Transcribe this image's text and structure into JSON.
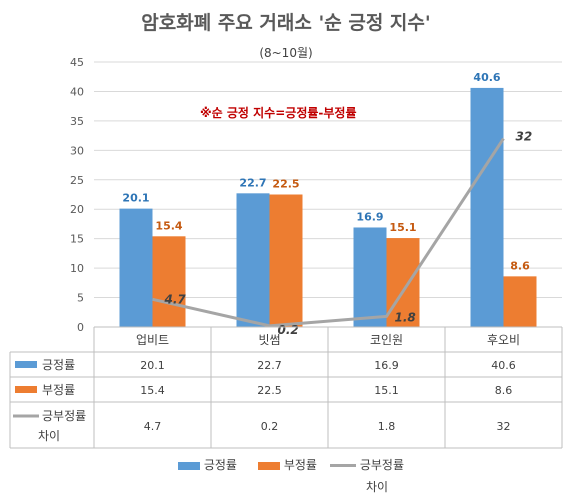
{
  "chart_data": {
    "type": "bar",
    "title": "암호화폐 주요 거래소 '순 긍정 지수'",
    "subtitle": "(8~10월)",
    "annotation": "※순 긍정 지수=긍정률-부정률",
    "categories": [
      "업비트",
      "빗썸",
      "코인원",
      "후오비"
    ],
    "series": [
      {
        "name": "긍정률",
        "kind": "bar",
        "color": "#5b9bd5",
        "label_color": "#2e75b6",
        "values": [
          20.1,
          22.7,
          16.9,
          40.6
        ]
      },
      {
        "name": "부정률",
        "kind": "bar",
        "color": "#ed7d31",
        "label_color": "#c55a11",
        "values": [
          15.4,
          22.5,
          15.1,
          8.6
        ]
      },
      {
        "name": "긍부정률 차이",
        "name_lines": [
          "긍부정률",
          "차이"
        ],
        "kind": "line",
        "color": "#a5a5a5",
        "values": [
          4.7,
          0.2,
          1.8,
          32
        ]
      }
    ],
    "ylim": [
      0,
      45
    ],
    "yticks": [
      0,
      5,
      10,
      15,
      20,
      25,
      30,
      35,
      40,
      45
    ],
    "grid": true,
    "legend": "bottom",
    "data_table": true,
    "table_values": [
      [
        "20.1",
        "22.7",
        "16.9",
        "40.6"
      ],
      [
        "15.4",
        "22.5",
        "15.1",
        "8.6"
      ],
      [
        "4.7",
        "0.2",
        "1.8",
        "32"
      ]
    ],
    "line_labels": [
      "4.7",
      "0.2",
      "1.8",
      "32"
    ]
  }
}
